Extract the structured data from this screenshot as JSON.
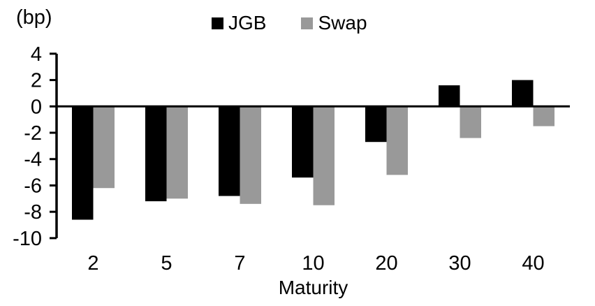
{
  "chart_data": {
    "type": "bar",
    "title": "",
    "unit_label": "(bp)",
    "xlabel": "Maturity",
    "ylabel": "(bp)",
    "categories": [
      "2",
      "5",
      "7",
      "10",
      "20",
      "30",
      "40"
    ],
    "series": [
      {
        "name": "JGB",
        "color": "#000000",
        "values": [
          -8.6,
          -7.2,
          -6.8,
          -5.4,
          -2.7,
          1.6,
          2.0
        ]
      },
      {
        "name": "Swap",
        "color": "#999999",
        "values": [
          -6.2,
          -7.0,
          -7.4,
          -7.5,
          -5.2,
          -2.4,
          -1.5
        ]
      }
    ],
    "ylim": [
      -10,
      4
    ],
    "yticks": [
      4,
      2,
      0,
      -2,
      -4,
      -6,
      -8,
      -10
    ],
    "ytick_step": 2,
    "grid": false,
    "legend_position": "top",
    "axis_color": "#000000",
    "text_color": "#000000",
    "background_color": "#ffffff"
  }
}
